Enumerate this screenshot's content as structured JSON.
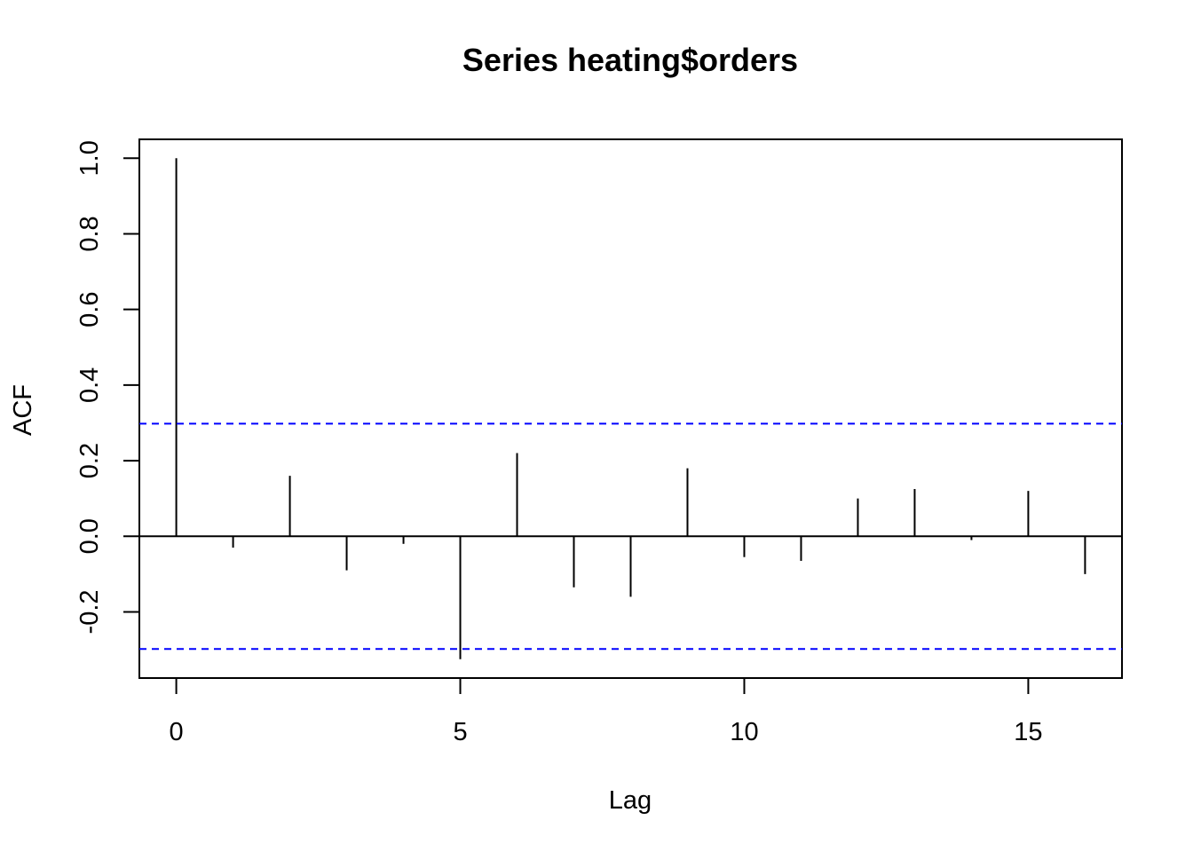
{
  "chart_data": {
    "type": "bar",
    "title": "Series  heating$orders",
    "xlabel": "Lag",
    "ylabel": "ACF",
    "x": [
      0,
      1,
      2,
      3,
      4,
      5,
      6,
      7,
      8,
      9,
      10,
      11,
      12,
      13,
      14,
      15,
      16
    ],
    "values": [
      1.0,
      -0.03,
      0.16,
      -0.09,
      -0.02,
      -0.325,
      0.22,
      -0.135,
      -0.16,
      0.18,
      -0.055,
      -0.065,
      0.1,
      0.125,
      -0.01,
      0.12,
      -0.1
    ],
    "confidence_bounds": [
      0.298,
      -0.298
    ],
    "xlim": [
      -0.65,
      16.65
    ],
    "ylim": [
      -0.375,
      1.05
    ],
    "x_ticks": [
      0,
      5,
      10,
      15
    ],
    "y_ticks": [
      -0.2,
      0.0,
      0.2,
      0.4,
      0.6,
      0.8,
      1.0
    ],
    "x_tick_labels": [
      "0",
      "5",
      "10",
      "15"
    ],
    "y_tick_labels": [
      "-0.2",
      "0.0",
      "0.2",
      "0.4",
      "0.6",
      "0.8",
      "1.0"
    ],
    "bar_color": "#000000",
    "bound_color": "#0000ff",
    "grid": false,
    "legend": "none"
  }
}
